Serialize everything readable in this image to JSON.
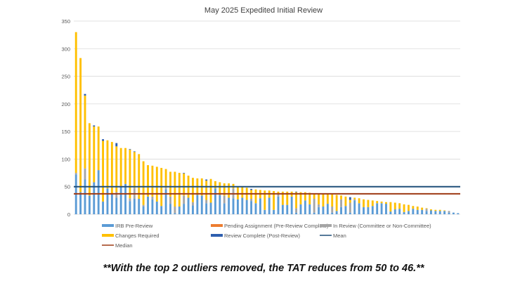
{
  "chart_data": {
    "type": "bar",
    "stacked": true,
    "title": "May 2025 Expedited Initial Review",
    "xlabel": "",
    "ylabel": "",
    "ylim": [
      0,
      350
    ],
    "yticks": [
      "0",
      "50",
      "100",
      "150",
      "200",
      "250",
      "300",
      "350"
    ],
    "grid": true,
    "legend_position": "bottom",
    "series": [
      {
        "name": "IRB Pre-Review",
        "color": "#5B9BD5",
        "values": [
          72,
          40,
          63,
          34,
          58,
          80,
          23,
          47,
          37,
          30,
          51,
          55,
          24,
          28,
          28,
          14,
          32,
          27,
          23,
          15,
          45,
          19,
          2,
          14,
          19,
          30,
          16,
          35,
          34,
          20,
          21,
          47,
          35,
          20,
          30,
          29,
          27,
          30,
          26,
          24,
          20,
          29,
          8,
          30,
          8,
          32,
          17,
          17,
          32,
          3,
          18,
          25,
          18,
          3,
          13,
          14,
          19,
          3,
          6,
          13,
          15,
          3,
          25,
          20,
          13,
          13,
          15,
          20,
          20,
          19,
          5,
          9,
          10,
          4,
          6,
          10,
          8,
          8,
          6,
          7,
          6,
          6,
          6,
          3,
          3,
          2
        ]
      },
      {
        "name": "Pending Assignment (Pre-Review Complete)",
        "color": "#ED7D31",
        "values": [
          0,
          0,
          0,
          0,
          0,
          0,
          0,
          0,
          0,
          0,
          0,
          0,
          0,
          0,
          0,
          0,
          0,
          0,
          0,
          0,
          0,
          0,
          0,
          0,
          0,
          0,
          0,
          0,
          0,
          0,
          0,
          0,
          0,
          0,
          0,
          0,
          0,
          0,
          0,
          0,
          0,
          0,
          0,
          0,
          0,
          0,
          0,
          0,
          0,
          0,
          0,
          0,
          0,
          0,
          0,
          0,
          0,
          0,
          0,
          0,
          0,
          0,
          0,
          0,
          0,
          0,
          0,
          0,
          0,
          0,
          0,
          0,
          0,
          0,
          0,
          0,
          0,
          0,
          0,
          0,
          0,
          0,
          0,
          0,
          0,
          0
        ]
      },
      {
        "name": "In Review (Committee or Non-Committee)",
        "color": "#A5A5A5",
        "values": [
          3,
          0,
          20,
          0,
          0,
          0,
          0,
          0,
          0,
          10,
          0,
          0,
          5,
          20,
          0,
          3,
          0,
          5,
          0,
          0,
          3,
          13,
          12,
          0,
          15,
          0,
          6,
          0,
          0,
          6,
          0,
          0,
          0,
          14,
          0,
          18,
          0,
          0,
          0,
          4,
          0,
          0,
          0,
          0,
          0,
          5,
          0,
          0,
          0,
          8,
          0,
          0,
          0,
          25,
          5,
          0,
          0,
          11,
          0,
          14,
          0,
          18,
          2,
          0,
          0,
          0,
          0,
          0,
          0,
          0,
          0,
          0,
          0,
          0,
          0,
          0,
          0,
          0,
          4,
          0,
          0,
          0,
          0,
          3,
          0,
          0
        ]
      },
      {
        "name": "Changes Required",
        "color": "#FFC000",
        "values": [
          255,
          243,
          132,
          131,
          101,
          79,
          110,
          87,
          94,
          83,
          69,
          65,
          88,
          65,
          81,
          79,
          57,
          56,
          63,
          69,
          34,
          45,
          63,
          61,
          40,
          40,
          44,
          30,
          31,
          35,
          43,
          13,
          23,
          22,
          26,
          8,
          23,
          19,
          22,
          16,
          25,
          15,
          35,
          13,
          34,
          4,
          24,
          24,
          9,
          29,
          22,
          15,
          21,
          10,
          19,
          23,
          18,
          22,
          29,
          7,
          17,
          5,
          3,
          9,
          14,
          13,
          10,
          4,
          3,
          3,
          17,
          12,
          10,
          14,
          11,
          5,
          6,
          4,
          1,
          2,
          2,
          2,
          1,
          0,
          0,
          0
        ]
      },
      {
        "name": "Review Complete (Post-Review)",
        "color": "#2E5FAF",
        "values": [
          0,
          0,
          3,
          0,
          2,
          0,
          3,
          0,
          0,
          6,
          0,
          0,
          1,
          1,
          0,
          0,
          0,
          0,
          0,
          0,
          0,
          0,
          0,
          0,
          1,
          0,
          0,
          0,
          0,
          2,
          0,
          0,
          0,
          0,
          0,
          0,
          0,
          0,
          0,
          2,
          0,
          0,
          0,
          0,
          0,
          0,
          0,
          0,
          0,
          1,
          0,
          0,
          0,
          0,
          0,
          0,
          0,
          0,
          0,
          0,
          0,
          5,
          0,
          0,
          0,
          0,
          0,
          0,
          0,
          0,
          0,
          0,
          0,
          0,
          0,
          0,
          0,
          0,
          0,
          0,
          0,
          0,
          0,
          0,
          0,
          0
        ]
      }
    ],
    "lines": [
      {
        "name": "Mean",
        "color": "#1F4E79",
        "value": 50
      },
      {
        "name": "Median",
        "color": "#9E3A14",
        "value": 37
      }
    ]
  },
  "footnote": "**With the top 2 outliers removed, the TAT reduces from 50 to 46.**"
}
